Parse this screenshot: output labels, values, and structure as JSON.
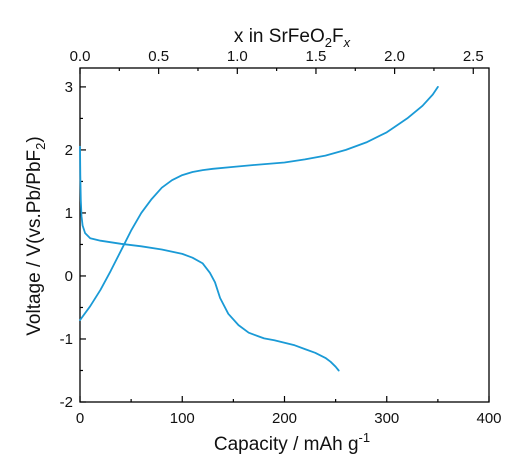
{
  "chart_data": {
    "type": "line",
    "title": "",
    "xlabel": "Capacity / mAh g",
    "xlabel_sup": "-1",
    "ylabel": "Voltage / V(vs.Pb/PbF",
    "ylabel_sub": "2",
    "ylabel_end": ")",
    "top_xlabel": {
      "prefix": "x in SrFeO",
      "sub1": "2",
      "mid": "F",
      "sub2": "x"
    },
    "xlim": [
      0,
      400
    ],
    "ylim": [
      -2,
      3.3
    ],
    "top_xlim": [
      0,
      2.6
    ],
    "x_ticks": [
      "0",
      "100",
      "200",
      "300",
      "400"
    ],
    "y_ticks": [
      "-2",
      "-1",
      "0",
      "1",
      "2",
      "3"
    ],
    "top_x_ticks": [
      "0.0",
      "0.5",
      "1.0",
      "1.5",
      "2.0",
      "2.5"
    ],
    "grid": false,
    "series_color": "#1a9ad6",
    "series": [
      {
        "name": "",
        "x": [
          0,
          0.3,
          0.8,
          1.5,
          2.5,
          5,
          10,
          20,
          40,
          60,
          80,
          100,
          110,
          120,
          127,
          132,
          137,
          145,
          155,
          165,
          175,
          180,
          190,
          200,
          210,
          220,
          230,
          240,
          245,
          250,
          253
        ],
        "y": [
          2.05,
          1.6,
          1.2,
          0.95,
          0.8,
          0.68,
          0.6,
          0.56,
          0.51,
          0.47,
          0.42,
          0.35,
          0.29,
          0.2,
          0.05,
          -0.1,
          -0.35,
          -0.6,
          -0.78,
          -0.9,
          -0.96,
          -0.99,
          -1.02,
          -1.06,
          -1.1,
          -1.16,
          -1.22,
          -1.3,
          -1.36,
          -1.44,
          -1.5
        ]
      },
      {
        "name": "",
        "x": [
          0,
          10,
          20,
          30,
          40,
          50,
          60,
          70,
          80,
          90,
          100,
          110,
          120,
          130,
          150,
          170,
          200,
          220,
          240,
          260,
          280,
          300,
          320,
          335,
          345,
          350
        ],
        "y": [
          -0.7,
          -0.48,
          -0.22,
          0.08,
          0.4,
          0.72,
          1.0,
          1.22,
          1.4,
          1.52,
          1.6,
          1.65,
          1.68,
          1.7,
          1.73,
          1.76,
          1.8,
          1.85,
          1.91,
          2.0,
          2.12,
          2.28,
          2.5,
          2.7,
          2.88,
          3.0
        ]
      }
    ]
  }
}
